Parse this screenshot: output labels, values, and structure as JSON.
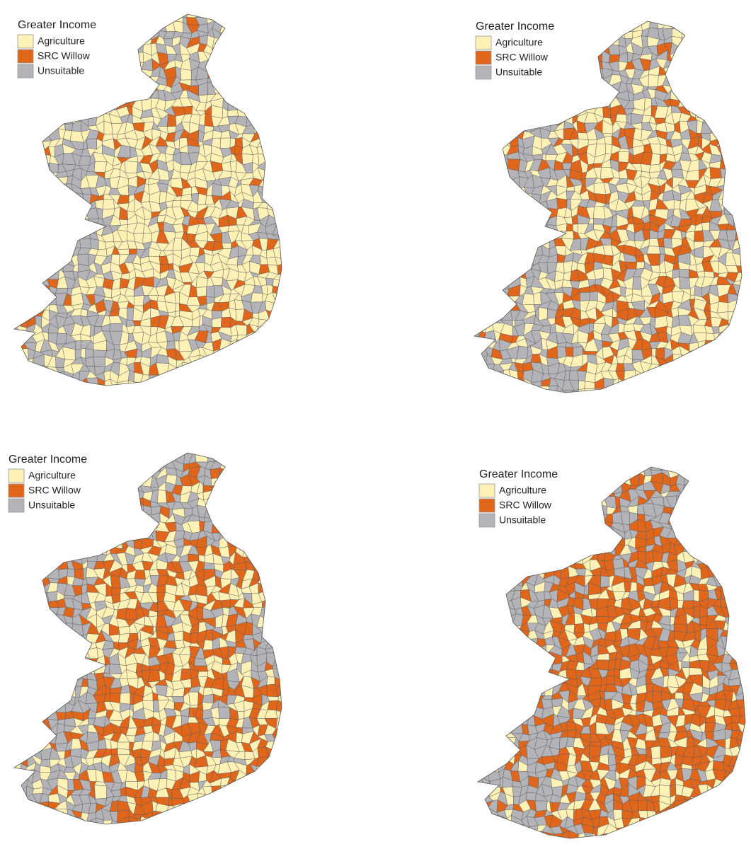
{
  "panels": [
    {
      "legend": {
        "title": "Greater Income",
        "items": [
          {
            "label": "Agriculture",
            "color": "#fdf1b6"
          },
          {
            "label": "SRC Willow",
            "color": "#e0661c"
          },
          {
            "label": "Unsuitable",
            "color": "#b4b4b8"
          }
        ]
      }
    },
    {
      "legend": {
        "title": "Greater Income",
        "items": [
          {
            "label": "Agriculture",
            "color": "#fdf1b6"
          },
          {
            "label": "SRC Willow",
            "color": "#e0661c"
          },
          {
            "label": "Unsuitable",
            "color": "#b4b4b8"
          }
        ]
      }
    },
    {
      "legend": {
        "title": "Greater Income",
        "items": [
          {
            "label": "Agriculture",
            "color": "#fdf1b6"
          },
          {
            "label": "SRC Willow",
            "color": "#e0661c"
          },
          {
            "label": "Unsuitable",
            "color": "#b4b4b8"
          }
        ]
      }
    },
    {
      "legend": {
        "title": "Greater Income",
        "items": [
          {
            "label": "Agriculture",
            "color": "#fdf1b6"
          },
          {
            "label": "SRC Willow",
            "color": "#e0661c"
          },
          {
            "label": "Unsuitable",
            "color": "#b4b4b8"
          }
        ]
      }
    }
  ]
}
